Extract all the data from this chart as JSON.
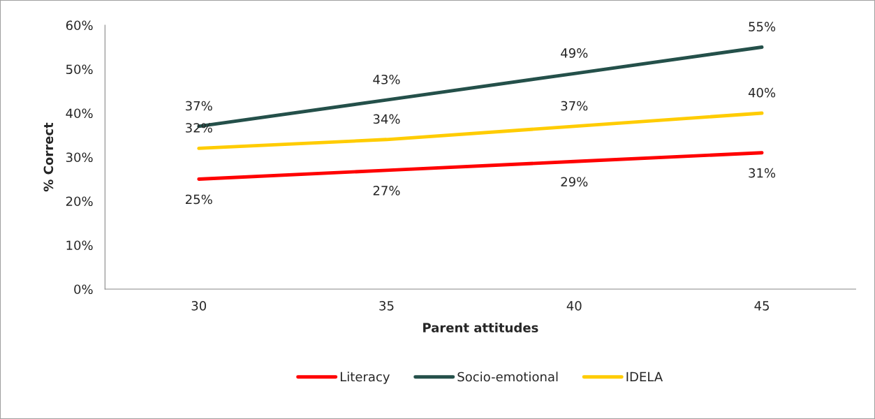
{
  "chart_data": {
    "type": "line",
    "xlabel": "Parent attitudes",
    "ylabel": "% Correct",
    "categories": [
      "30",
      "35",
      "40",
      "45"
    ],
    "series": [
      {
        "name": "Literacy",
        "color": "#ff0000",
        "values": [
          25,
          27,
          29,
          31
        ],
        "value_labels": [
          "25%",
          "27%",
          "29%",
          "31%"
        ]
      },
      {
        "name": "Socio-emotional",
        "color": "#24504a",
        "values": [
          37,
          43,
          49,
          55
        ],
        "value_labels": [
          "37%",
          "43%",
          "49%",
          "55%"
        ]
      },
      {
        "name": "IDELA",
        "color": "#ffcc00",
        "values": [
          32,
          34,
          37,
          40
        ],
        "value_labels": [
          "32%",
          "34%",
          "37%",
          "40%"
        ]
      }
    ],
    "ylim": [
      0,
      60
    ],
    "yticks": [
      {
        "value": 0,
        "label": "0%"
      },
      {
        "value": 10,
        "label": "10%"
      },
      {
        "value": 20,
        "label": "20%"
      },
      {
        "value": 30,
        "label": "30%"
      },
      {
        "value": 40,
        "label": "40%"
      },
      {
        "value": 50,
        "label": "50%"
      },
      {
        "value": 60,
        "label": "60%"
      }
    ],
    "grid": false,
    "legend": "bottom",
    "marker": "none",
    "line_style": "solid"
  }
}
